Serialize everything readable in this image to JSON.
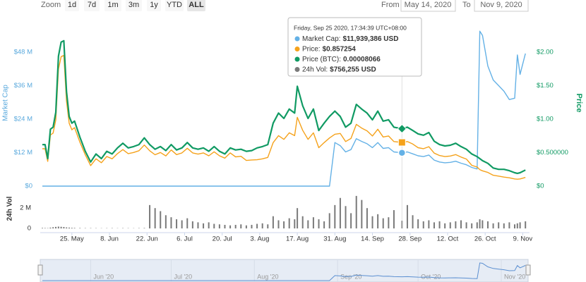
{
  "toolbar": {
    "zoom_label": "Zoom",
    "buttons": [
      "1d",
      "7d",
      "1m",
      "3m",
      "1y",
      "YTD",
      "ALL"
    ],
    "active_button": 6,
    "from_label": "From",
    "from": "May 14, 2020",
    "to_label": "To",
    "to": "Nov 9, 2020"
  },
  "chart_data": {
    "type": "line",
    "ylabel": "Market Cap",
    "y2label": "Price",
    "x": [
      "2020-05-14",
      "2020-05-15",
      "2020-05-16",
      "2020-05-17",
      "2020-05-18",
      "2020-05-19",
      "2020-05-20",
      "2020-05-21",
      "2020-05-22",
      "2020-05-23",
      "2020-05-24",
      "2020-05-25",
      "2020-05-26",
      "2020-05-28",
      "2020-05-30",
      "2020-06-01",
      "2020-06-03",
      "2020-06-05",
      "2020-06-07",
      "2020-06-09",
      "2020-06-11",
      "2020-06-13",
      "2020-06-15",
      "2020-06-17",
      "2020-06-19",
      "2020-06-21",
      "2020-06-23",
      "2020-06-25",
      "2020-06-27",
      "2020-06-29",
      "2020-07-01",
      "2020-07-03",
      "2020-07-05",
      "2020-07-07",
      "2020-07-09",
      "2020-07-11",
      "2020-07-13",
      "2020-07-15",
      "2020-07-17",
      "2020-07-19",
      "2020-07-21",
      "2020-07-23",
      "2020-07-25",
      "2020-07-27",
      "2020-07-29",
      "2020-07-31",
      "2020-08-02",
      "2020-08-04",
      "2020-08-06",
      "2020-08-08",
      "2020-08-10",
      "2020-08-12",
      "2020-08-14",
      "2020-08-16",
      "2020-08-17",
      "2020-08-19",
      "2020-08-21",
      "2020-08-23",
      "2020-08-25",
      "2020-08-27",
      "2020-08-29",
      "2020-08-31",
      "2020-09-02",
      "2020-09-04",
      "2020-09-06",
      "2020-09-08",
      "2020-09-10",
      "2020-09-12",
      "2020-09-14",
      "2020-09-16",
      "2020-09-18",
      "2020-09-20",
      "2020-09-22",
      "2020-09-25",
      "2020-09-27",
      "2020-09-29",
      "2020-10-01",
      "2020-10-03",
      "2020-10-05",
      "2020-10-07",
      "2020-10-09",
      "2020-10-11",
      "2020-10-13",
      "2020-10-15",
      "2020-10-17",
      "2020-10-19",
      "2020-10-21",
      "2020-10-23",
      "2020-10-24",
      "2020-10-25",
      "2020-10-27",
      "2020-10-29",
      "2020-10-31",
      "2020-11-02",
      "2020-11-04",
      "2020-11-06",
      "2020-11-07",
      "2020-11-08",
      "2020-11-10"
    ],
    "xlim": [
      "2020-05-14",
      "2020-11-11"
    ],
    "xticks": [
      {
        "value": "2020-05-25",
        "label": "25. May"
      },
      {
        "value": "2020-06-08",
        "label": "8. Jun"
      },
      {
        "value": "2020-06-22",
        "label": "22. Jun"
      },
      {
        "value": "2020-07-06",
        "label": "6. Jul"
      },
      {
        "value": "2020-07-20",
        "label": "20. Jul"
      },
      {
        "value": "2020-08-03",
        "label": "3. Aug"
      },
      {
        "value": "2020-08-17",
        "label": "17. Aug"
      },
      {
        "value": "2020-08-31",
        "label": "31. Aug"
      },
      {
        "value": "2020-09-14",
        "label": "14. Sep"
      },
      {
        "value": "2020-09-28",
        "label": "28. Sep"
      },
      {
        "value": "2020-10-12",
        "label": "12. Oct"
      },
      {
        "value": "2020-10-26",
        "label": "26. Oct"
      },
      {
        "value": "2020-11-09",
        "label": "9. Nov"
      }
    ],
    "ylim": [
      0,
      59600000
    ],
    "yticks": [
      {
        "value": 0,
        "label": "$0"
      },
      {
        "value": 12000000,
        "label": "$12 M"
      },
      {
        "value": 24000000,
        "label": "$24 M"
      },
      {
        "value": 36000000,
        "label": "$36 M"
      },
      {
        "value": 48000000,
        "label": "$48 M"
      }
    ],
    "y2lim": [
      0,
      2.484
    ],
    "y2ticks": [
      {
        "value": 0,
        "label": "$0"
      },
      {
        "value": 0.5,
        "label": "$0.500000"
      },
      {
        "value": 1,
        "label": "$1.00"
      },
      {
        "value": 1.5,
        "label": "$1.50"
      },
      {
        "value": 2,
        "label": "$2.00"
      }
    ],
    "y3lim": [
      0,
      0.000307
    ],
    "grid": false,
    "series": [
      {
        "color": "#64b1e6",
        "axis": "y",
        "values": [
          0,
          0,
          0,
          0,
          0,
          0,
          0,
          0,
          0,
          0,
          0,
          0,
          0,
          0,
          0,
          0,
          0,
          0,
          0,
          0,
          0,
          0,
          0,
          0,
          0,
          0,
          0,
          0,
          0,
          0,
          0,
          0,
          0,
          0,
          0,
          0,
          0,
          0,
          0,
          0,
          0,
          0,
          0,
          0,
          0,
          0,
          0,
          0,
          0,
          0,
          0,
          0,
          0,
          0,
          0,
          0,
          0,
          0,
          0,
          0,
          0,
          15600000,
          14490000,
          12260000,
          13090000,
          17000000,
          16020000,
          15180000,
          13790000,
          15600000,
          13510000,
          13790000,
          12260000,
          11939386,
          12260000,
          11560000,
          10870000,
          10590000,
          11140000,
          9330000,
          8640000,
          8360000,
          8500000,
          8920000,
          8220000,
          7660000,
          6690000,
          6130000,
          55500000,
          54000000,
          43000000,
          38000000,
          36000000,
          34000000,
          31000000,
          31500000,
          47000000,
          40000000,
          47500000
        ]
      },
      {
        "color": "#f5a21b",
        "axis": "y3",
        "values": [
          6.89e-05,
          6.89e-05,
          4.56e-05,
          9.44e-05,
          9.78e-05,
          0.000122,
          0.000216,
          0.000239,
          0.000241,
          0.000157,
          0.000116,
          0.000104,
          0.000108,
          8.11e-05,
          5.78e-05,
          3.79e-05,
          5.05e-05,
          4.32e-05,
          5.47e-05,
          5.05e-05,
          6e-05,
          6.74e-05,
          6e-05,
          6.21e-05,
          6.53e-05,
          7.58e-05,
          6.53e-05,
          5.79e-05,
          6.21e-05,
          5.58e-05,
          6.67e-05,
          5.81e-05,
          6.13e-05,
          6.99e-05,
          6.13e-05,
          5.91e-05,
          6.13e-05,
          5.59e-05,
          6.34e-05,
          5.59e-05,
          5.16e-05,
          6.13e-05,
          5.4e-05,
          5.5e-05,
          4.73e-05,
          4.82e-05,
          4.87e-05,
          5.04e-05,
          5.3e-05,
          8.03e-05,
          9.32e-05,
          8.63e-05,
          9.83e-05,
          9.32e-05,
          0.000127,
          0.000103,
          8.63e-05,
          9.83e-05,
          7.09e-05,
          8.03e-05,
          8.89e-05,
          9.57e-05,
          9.72e-05,
          8.22e-05,
          8.79e-05,
          0.000114,
          0.000107,
          0.000102,
          9.25e-05,
          0.000105,
          9.07e-05,
          9.25e-05,
          8.22e-05,
          8.066e-05,
          8.22e-05,
          7.76e-05,
          7.09e-05,
          6.91e-05,
          7.27e-05,
          6.09e-05,
          5.64e-05,
          5.45e-05,
          5.55e-05,
          5.82e-05,
          5.36e-05,
          5e-05,
          3.84e-05,
          3.52e-05,
          3.04e-05,
          2.82e-05,
          2.52e-05,
          2e-05,
          1.85e-05,
          1.67e-05,
          1.53e-05,
          1.33e-05,
          1.27e-05,
          1.33e-05,
          1.6e-05
        ]
      },
      {
        "color": "#109a63",
        "axis": "y2",
        "values": [
          0.62,
          0.62,
          0.41,
          0.85,
          0.88,
          1.1,
          1.94,
          2.15,
          2.17,
          1.41,
          1.04,
          0.94,
          0.97,
          0.73,
          0.52,
          0.36,
          0.48,
          0.41,
          0.52,
          0.48,
          0.57,
          0.64,
          0.57,
          0.59,
          0.62,
          0.72,
          0.62,
          0.55,
          0.59,
          0.53,
          0.62,
          0.54,
          0.57,
          0.65,
          0.57,
          0.55,
          0.57,
          0.52,
          0.59,
          0.52,
          0.48,
          0.57,
          0.54,
          0.55,
          0.52,
          0.53,
          0.57,
          0.59,
          0.62,
          0.94,
          1.09,
          1.01,
          1.15,
          1.09,
          1.49,
          1.2,
          1.01,
          1.15,
          0.83,
          0.94,
          1.04,
          1.12,
          1.04,
          0.88,
          0.94,
          1.22,
          1.15,
          1.09,
          0.99,
          1.12,
          0.97,
          0.99,
          0.88,
          0.857254,
          0.88,
          0.83,
          0.78,
          0.76,
          0.8,
          0.67,
          0.62,
          0.6,
          0.61,
          0.64,
          0.59,
          0.55,
          0.48,
          0.44,
          0.41,
          0.38,
          0.34,
          0.27,
          0.25,
          0.25,
          0.23,
          0.2,
          0.19,
          0.2,
          0.24
        ]
      }
    ],
    "volume": {
      "type": "bar",
      "ylabel": "24h Vol",
      "color": "#7a7a7a",
      "ylim": [
        0,
        3400000
      ],
      "yticks": [
        0,
        {
          "value": 2000000,
          "label": "2 M"
        }
      ],
      "values": [
        50000,
        40000,
        30000,
        80000,
        120000,
        150000,
        180000,
        160000,
        140000,
        100000,
        80000,
        60000,
        50000,
        40000,
        30000,
        30000,
        25000,
        20000,
        25000,
        30000,
        20000,
        30000,
        25000,
        20000,
        30000,
        40000,
        2300000,
        2000000,
        1700000,
        1300000,
        1100000,
        900000,
        800000,
        1000000,
        700000,
        600000,
        500000,
        600000,
        450000,
        400000,
        350000,
        300000,
        350000,
        400000,
        300000,
        350000,
        450000,
        500000,
        400000,
        1200000,
        800000,
        700000,
        1000000,
        900000,
        2000000,
        1200000,
        800000,
        1100000,
        900000,
        700000,
        1500000,
        2300000,
        3000000,
        2200000,
        1500000,
        3200000,
        2800000,
        2000000,
        1200000,
        1400000,
        1000000,
        1100000,
        1800000,
        756255,
        2300000,
        1300000,
        900000,
        700000,
        800000,
        600000,
        700000,
        500000,
        600000,
        700000,
        800000,
        600000,
        500000,
        600000,
        900000,
        800000,
        700000,
        500000,
        600000,
        500000,
        600000,
        400000,
        500000,
        600000,
        700000
      ]
    },
    "tooltip": {
      "x": "2020-09-25",
      "header": "Friday, Sep 25 2020, 17:34:39 UTC+08:00",
      "rows": [
        {
          "label": "Market Cap:",
          "value": "$11,939,386 USD"
        },
        {
          "label": "Price:",
          "value": "$0.857254"
        },
        {
          "label": "Price (BTC):",
          "value": "0.00008066"
        },
        {
          "label": "24h Vol:",
          "value": "$756,255 USD"
        }
      ]
    },
    "navigator": {
      "xticks": [
        {
          "value": "2020-06-01",
          "label": "Jun '20"
        },
        {
          "value": "2020-07-01",
          "label": "Jul '20"
        },
        {
          "value": "2020-08-01",
          "label": "Aug '20"
        },
        {
          "value": "2020-09-01",
          "label": "Sep '20"
        },
        {
          "value": "2020-10-01",
          "label": "Oct '20"
        },
        {
          "value": "2020-11-01",
          "label": "Nov '20"
        }
      ]
    }
  }
}
